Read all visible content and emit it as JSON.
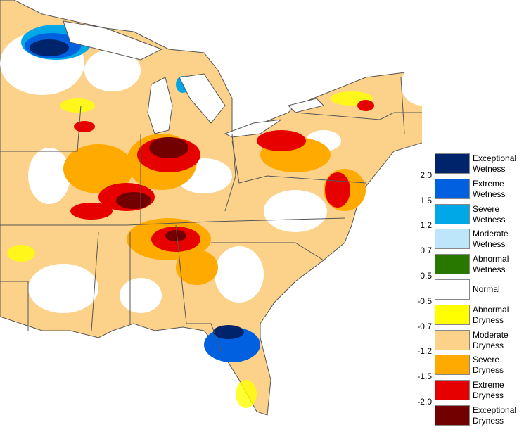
{
  "legend": {
    "classes": [
      {
        "label": "Exceptional Wetness",
        "color": "#00246b"
      },
      {
        "label": "Extreme Wetness",
        "color": "#0060e0"
      },
      {
        "label": "Severe Wetness",
        "color": "#00a8e8"
      },
      {
        "label": "Moderate Wetness",
        "color": "#bde6fa"
      },
      {
        "label": "Abnormal Wetness",
        "color": "#287800"
      },
      {
        "label": "Normal",
        "color": "#ffffff"
      },
      {
        "label": "Abnormal Dryness",
        "color": "#ffff00"
      },
      {
        "label": "Moderate Dryness",
        "color": "#fcd28a"
      },
      {
        "label": "Severe Dryness",
        "color": "#ffaa00"
      },
      {
        "label": "Extreme Dryness",
        "color": "#e60000"
      },
      {
        "label": "Exceptional Dryness",
        "color": "#730000"
      }
    ],
    "thresholds": [
      "2.0",
      "1.5",
      "1.2",
      "0.7",
      "0.5",
      "-0.5",
      "-0.7",
      "-1.2",
      "-1.5",
      "-2.0"
    ]
  }
}
